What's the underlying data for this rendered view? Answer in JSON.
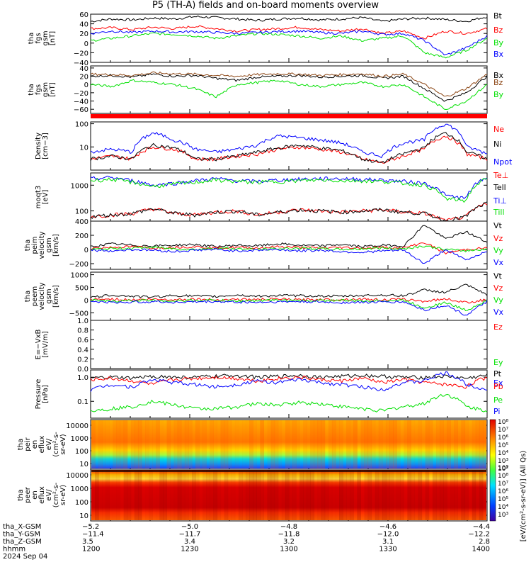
{
  "title": "P5 (TH-A) fields and on-board moments overview",
  "colors": {
    "black": "#000000",
    "red": "#ff0000",
    "green": "#00e000",
    "blue": "#0000ff",
    "brown": "#8b4513"
  },
  "chart_data": [
    {
      "type": "line",
      "ylabel": [
        "tha",
        "fgs",
        "gsm",
        "[nT]"
      ],
      "yticks": [
        "60",
        "40",
        "20",
        "0",
        "−20",
        "−40"
      ],
      "ylim": [
        -40,
        60
      ],
      "series": [
        {
          "name": "Bt",
          "color": "black",
          "values": [
            45,
            50,
            48,
            52,
            50,
            55,
            53,
            50,
            47,
            50,
            52,
            48,
            50,
            53,
            45,
            50,
            52,
            49,
            45,
            55
          ]
        },
        {
          "name": "Bz",
          "color": "red",
          "values": [
            30,
            32,
            28,
            33,
            30,
            35,
            30,
            25,
            28,
            30,
            33,
            28,
            25,
            30,
            20,
            25,
            10,
            25,
            20,
            30
          ]
        },
        {
          "name": "By",
          "color": "green",
          "values": [
            5,
            10,
            15,
            20,
            18,
            15,
            10,
            15,
            20,
            18,
            15,
            10,
            15,
            5,
            10,
            15,
            -20,
            -30,
            -15,
            10
          ]
        },
        {
          "name": "Bx",
          "color": "blue",
          "values": [
            20,
            25,
            22,
            25,
            23,
            24,
            22,
            20,
            22,
            24,
            25,
            22,
            20,
            25,
            18,
            20,
            5,
            -25,
            -10,
            15
          ]
        }
      ]
    },
    {
      "type": "line",
      "ylabel": [
        "tha",
        "fgs",
        "gsm",
        "[nT]"
      ],
      "yticks": [
        "40",
        "20",
        "0",
        "−20",
        "−40",
        "−60"
      ],
      "ylim": [
        -70,
        45
      ],
      "series": [
        {
          "name": "Bx",
          "color": "black",
          "values": [
            20,
            22,
            18,
            25,
            20,
            22,
            15,
            10,
            18,
            20,
            22,
            18,
            20,
            22,
            15,
            20,
            -10,
            -40,
            -20,
            20
          ]
        },
        {
          "name": "Bz",
          "color": "brown",
          "values": [
            25,
            24,
            22,
            28,
            26,
            25,
            22,
            20,
            24,
            26,
            25,
            22,
            24,
            26,
            20,
            25,
            0,
            -30,
            -10,
            25
          ]
        },
        {
          "name": "By",
          "color": "green",
          "values": [
            0,
            -5,
            10,
            5,
            0,
            -10,
            -30,
            0,
            5,
            10,
            0,
            -5,
            0,
            5,
            -5,
            0,
            -30,
            -60,
            -40,
            0
          ]
        }
      ]
    },
    {
      "type": "line",
      "ylabel": [
        "Density",
        "[cm−3]"
      ],
      "yticks": [
        "100",
        "10"
      ],
      "ylim": [
        1,
        120
      ],
      "scale": "log",
      "series": [
        {
          "name": "Ne",
          "color": "red",
          "values": [
            3,
            4,
            3,
            10,
            8,
            3,
            3,
            4,
            5,
            8,
            10,
            8,
            6,
            3,
            2,
            4,
            8,
            30,
            5,
            3
          ]
        },
        {
          "name": "Ni",
          "color": "black",
          "values": [
            3,
            4,
            3,
            12,
            9,
            3,
            3,
            4,
            6,
            9,
            12,
            9,
            7,
            3,
            2,
            5,
            9,
            40,
            6,
            3
          ]
        },
        {
          "name": "Npot",
          "color": "blue",
          "values": [
            6,
            8,
            6,
            40,
            20,
            8,
            6,
            8,
            12,
            30,
            25,
            20,
            15,
            6,
            4,
            15,
            20,
            100,
            10,
            5
          ]
        }
      ]
    },
    {
      "type": "line",
      "ylabel": [
        "moqt3",
        "[eV]"
      ],
      "yticks": [
        "1000",
        "100"
      ],
      "ylim": [
        40,
        3000
      ],
      "scale": "log",
      "series": [
        {
          "name": "Te⊥",
          "color": "red",
          "values": [
            60,
            70,
            80,
            120,
            80,
            70,
            90,
            100,
            70,
            90,
            110,
            100,
            90,
            100,
            110,
            90,
            80,
            40,
            60,
            200
          ]
        },
        {
          "name": "Tell",
          "color": "black",
          "values": [
            60,
            70,
            80,
            120,
            80,
            70,
            90,
            100,
            70,
            90,
            110,
            100,
            90,
            100,
            110,
            90,
            80,
            40,
            60,
            200
          ]
        },
        {
          "name": "Ti⊥",
          "color": "blue",
          "values": [
            1800,
            2000,
            1500,
            1000,
            1200,
            1500,
            1800,
            1500,
            1400,
            1600,
            1700,
            1800,
            1800,
            1700,
            1600,
            1400,
            1200,
            400,
            300,
            2000
          ]
        },
        {
          "name": "Till",
          "color": "green",
          "values": [
            1500,
            1700,
            1300,
            900,
            1100,
            1300,
            1600,
            1400,
            1300,
            1400,
            1500,
            1600,
            1500,
            1500,
            1400,
            1200,
            1000,
            300,
            250,
            1800
          ]
        }
      ]
    },
    {
      "type": "line",
      "ylabel": [
        "tha",
        "peim",
        "velocity",
        "gsm",
        "[km/s]"
      ],
      "yticks": [
        "400",
        "200",
        "0",
        "−200"
      ],
      "ylim": [
        -280,
        400
      ],
      "series": [
        {
          "name": "Vt",
          "color": "black",
          "values": [
            40,
            80,
            60,
            50,
            60,
            70,
            40,
            60,
            50,
            80,
            60,
            50,
            70,
            40,
            60,
            50,
            350,
            150,
            250,
            100
          ]
        },
        {
          "name": "Vz",
          "color": "red",
          "values": [
            20,
            30,
            40,
            20,
            30,
            40,
            20,
            30,
            20,
            40,
            30,
            20,
            30,
            20,
            30,
            20,
            100,
            -50,
            0,
            20
          ]
        },
        {
          "name": "Vy",
          "color": "green",
          "values": [
            0,
            10,
            20,
            30,
            10,
            0,
            20,
            10,
            0,
            10,
            20,
            10,
            0,
            10,
            20,
            10,
            50,
            0,
            -20,
            10
          ]
        },
        {
          "name": "Vx",
          "color": "blue",
          "values": [
            -10,
            -20,
            0,
            -10,
            -30,
            -10,
            0,
            -20,
            -10,
            0,
            -20,
            -10,
            -30,
            -40,
            -20,
            -10,
            -200,
            0,
            -150,
            -20
          ]
        }
      ]
    },
    {
      "type": "line",
      "ylabel": [
        "tha",
        "peem",
        "velocity",
        "gsm",
        "[km/s]"
      ],
      "yticks": [
        "1000",
        "500",
        "0",
        "−500"
      ],
      "ylim": [
        -800,
        1100
      ],
      "series": [
        {
          "name": "Vt",
          "color": "black",
          "values": [
            100,
            200,
            150,
            120,
            180,
            160,
            140,
            200,
            150,
            180,
            170,
            160,
            150,
            180,
            200,
            170,
            400,
            300,
            600,
            200
          ]
        },
        {
          "name": "Vz",
          "color": "red",
          "values": [
            20,
            40,
            10,
            30,
            20,
            40,
            10,
            30,
            20,
            40,
            10,
            30,
            20,
            40,
            10,
            30,
            -50,
            50,
            -100,
            20
          ]
        },
        {
          "name": "Vy",
          "color": "green",
          "values": [
            -10,
            -50,
            -20,
            -10,
            -30,
            -20,
            -10,
            -40,
            -20,
            -10,
            -30,
            -20,
            -10,
            -40,
            -20,
            -10,
            -300,
            -100,
            -400,
            -20
          ]
        },
        {
          "name": "Vx",
          "color": "blue",
          "values": [
            -50,
            -100,
            -80,
            -60,
            -90,
            -70,
            -60,
            -80,
            -90,
            -70,
            -60,
            -80,
            -100,
            -90,
            -80,
            -70,
            -400,
            -200,
            -600,
            -50
          ]
        }
      ]
    },
    {
      "type": "line",
      "ylabel": [
        "E=−VxB",
        "[mV/m]"
      ],
      "yticks": [
        "1.0",
        "0.8",
        "0.6",
        "0.4",
        "0.2",
        "0.0"
      ],
      "ylim": [
        0,
        1
      ],
      "series": [
        {
          "name": "Ez",
          "color": "red",
          "values": []
        },
        {
          "name": "Ey",
          "color": "green",
          "values": []
        },
        {
          "name": "Ex",
          "color": "blue",
          "values": []
        }
      ]
    },
    {
      "type": "line",
      "ylabel": [
        "Pressure",
        "[nPa]"
      ],
      "yticks": [
        "1.0",
        "0.1"
      ],
      "ylim": [
        0.02,
        2
      ],
      "scale": "log",
      "series": [
        {
          "name": "Pt",
          "color": "black",
          "values": [
            0.9,
            1.0,
            0.9,
            1.1,
            1.0,
            1.0,
            1.1,
            1.2,
            1.0,
            1.1,
            1.2,
            1.0,
            1.1,
            1.2,
            1.1,
            1.0,
            1.0,
            1.1,
            0.9,
            1.2
          ]
        },
        {
          "name": "Pb",
          "color": "red",
          "values": [
            0.8,
            0.9,
            0.7,
            0.5,
            0.8,
            0.9,
            1.0,
            0.9,
            0.7,
            0.9,
            1.0,
            0.8,
            0.7,
            0.9,
            0.6,
            0.8,
            0.6,
            0.5,
            0.4,
            1.0
          ]
        },
        {
          "name": "Pe",
          "color": "green",
          "values": [
            0.04,
            0.05,
            0.06,
            0.1,
            0.07,
            0.05,
            0.05,
            0.06,
            0.08,
            0.07,
            0.09,
            0.08,
            0.06,
            0.05,
            0.04,
            0.06,
            0.08,
            0.2,
            0.06,
            0.04
          ]
        },
        {
          "name": "Pi",
          "color": "blue",
          "values": [
            0.3,
            0.5,
            0.4,
            0.8,
            0.6,
            0.5,
            0.4,
            0.5,
            0.7,
            0.6,
            0.8,
            0.6,
            0.5,
            0.4,
            0.3,
            0.6,
            0.7,
            1.5,
            0.5,
            0.3
          ]
        }
      ]
    },
    {
      "type": "heatmap",
      "ylabel": [
        "tha",
        "peir",
        "en",
        "eflux",
        "eV/",
        "(cm²-s-",
        "sr-eV)"
      ],
      "yticks": [
        "10000",
        "1000",
        "100",
        "10"
      ]
    },
    {
      "type": "heatmap",
      "ylabel": [
        "tha",
        "peer",
        "en",
        "eflux",
        "eV/",
        "(cm²-s-",
        "sr-eV)"
      ],
      "yticks": [
        "10000",
        "1000",
        "100",
        "10"
      ]
    }
  ],
  "colorbar": {
    "label": "[eV/(cm²-s-sr-eV)] (All Qs)",
    "ticks1": [
      "10⁸",
      "10⁷",
      "10⁶",
      "10⁵",
      "10⁴",
      "10³",
      "10²"
    ],
    "ticks2": [
      "10⁹",
      "10⁸",
      "10⁷",
      "10⁶",
      "10⁵",
      "10⁴",
      "10³"
    ]
  },
  "xaxis": {
    "rows": [
      {
        "label": "tha_X-GSM",
        "values": [
          "−5.2",
          "−5.0",
          "−4.8",
          "−4.6",
          "−4.4"
        ]
      },
      {
        "label": "tha_Y-GSM",
        "values": [
          "−11.4",
          "−11.7",
          "−11.8",
          "−12.0",
          "−12.2"
        ]
      },
      {
        "label": "tha_Z-GSM",
        "values": [
          "3.5",
          "3.4",
          "3.2",
          "3.1",
          "2.8"
        ]
      },
      {
        "label": "hhmm",
        "values": [
          "1200",
          "1230",
          "1300",
          "1330",
          "1400"
        ]
      }
    ],
    "date": "2024 Sep 04"
  }
}
